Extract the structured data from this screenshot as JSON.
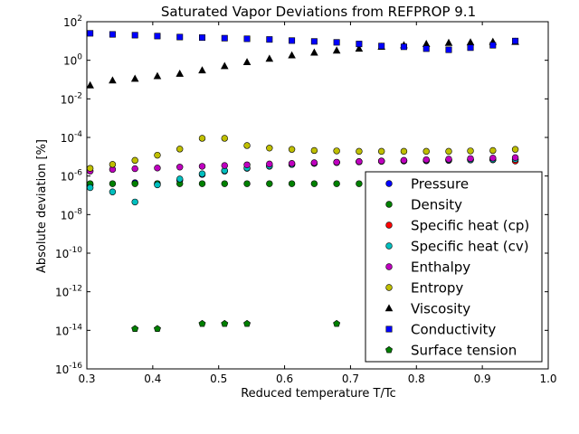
{
  "chart_data": {
    "type": "scatter",
    "title": "Saturated Vapor Deviations from REFPROP 9.1",
    "xlabel": "Reduced temperature T/Tc",
    "ylabel": "Absolute deviation [%]",
    "xlim": [
      0.3,
      1.0
    ],
    "ylim_log10": [
      -16,
      2
    ],
    "y_scale": "log",
    "x_ticks": [
      "0.3",
      "0.4",
      "0.5",
      "0.6",
      "0.7",
      "0.8",
      "0.9",
      "1.0"
    ],
    "y_ticks": [
      {
        "base": "10",
        "exp": "2"
      },
      {
        "base": "10",
        "exp": "0"
      },
      {
        "base": "10",
        "exp": "-2"
      },
      {
        "base": "10",
        "exp": "-4"
      },
      {
        "base": "10",
        "exp": "-6"
      },
      {
        "base": "10",
        "exp": "-8"
      },
      {
        "base": "10",
        "exp": "-10"
      },
      {
        "base": "10",
        "exp": "-12"
      },
      {
        "base": "10",
        "exp": "-14"
      },
      {
        "base": "10",
        "exp": "-16"
      }
    ],
    "grid": false,
    "legend_position": "lower-right",
    "series": [
      {
        "name": "Pressure",
        "marker": "circle",
        "color": "#0000ff",
        "x": [
          0.305,
          0.373,
          0.407,
          0.441,
          0.475,
          0.509,
          0.543,
          0.577,
          0.611,
          0.645,
          0.679,
          0.713,
          0.747,
          0.781,
          0.815,
          0.849,
          0.882,
          0.916,
          0.95
        ],
        "y": [
          3.5e-07,
          4.5e-07,
          4e-07,
          6e-07,
          1.2e-06,
          1.8e-06,
          2.5e-06,
          3.2e-06,
          4e-06,
          4.5e-06,
          5e-06,
          5.5e-06,
          5.8e-06,
          6e-06,
          6.2e-06,
          6.5e-06,
          6.8e-06,
          7e-06,
          7.2e-06
        ]
      },
      {
        "name": "Density",
        "marker": "circle",
        "color": "#008000",
        "x": [
          0.305,
          0.339,
          0.373,
          0.407,
          0.441,
          0.475,
          0.509,
          0.543,
          0.577,
          0.611,
          0.645,
          0.679,
          0.713
        ],
        "y": [
          4e-07,
          4e-07,
          4e-07,
          4e-07,
          4e-07,
          4e-07,
          4e-07,
          4e-07,
          4e-07,
          4e-07,
          4e-07,
          4e-07,
          4e-07
        ]
      },
      {
        "name": "Specific heat (cp)",
        "marker": "circle",
        "color": "#ff0000",
        "x": [
          0.713,
          0.747,
          0.781,
          0.815,
          0.849,
          0.882,
          0.916,
          0.95
        ],
        "y": [
          5.5e-06,
          6e-06,
          6.2e-06,
          6.5e-06,
          6.8e-06,
          7e-06,
          7e-06,
          6e-06
        ]
      },
      {
        "name": "Specific heat (cv)",
        "marker": "circle",
        "color": "#00bfbf",
        "x": [
          0.305,
          0.339,
          0.373,
          0.407,
          0.441,
          0.475,
          0.509,
          0.543,
          0.577,
          0.611,
          0.645,
          0.679,
          0.713,
          0.747,
          0.781,
          0.815,
          0.849,
          0.882,
          0.916,
          0.95
        ],
        "y": [
          2.5e-07,
          1.5e-07,
          4.5e-08,
          3.5e-07,
          7e-07,
          1.3e-06,
          1.9e-06,
          2.6e-06,
          3.3e-06,
          4e-06,
          4.6e-06,
          5.1e-06,
          5.5e-06,
          5.9e-06,
          6.2e-06,
          6.5e-06,
          6.8e-06,
          7e-06,
          7.2e-06,
          7.4e-06
        ]
      },
      {
        "name": "Enthalpy",
        "marker": "circle",
        "color": "#bf00bf",
        "x": [
          0.305,
          0.339,
          0.373,
          0.407,
          0.441,
          0.475,
          0.509,
          0.543,
          0.577,
          0.611,
          0.645,
          0.679,
          0.713,
          0.747,
          0.781,
          0.815,
          0.849,
          0.882,
          0.916,
          0.95
        ],
        "y": [
          1.8e-06,
          2.2e-06,
          2.4e-06,
          2.6e-06,
          2.9e-06,
          3.2e-06,
          3.5e-06,
          3.8e-06,
          4.2e-06,
          4.5e-06,
          4.9e-06,
          5.2e-06,
          5.6e-06,
          6e-06,
          6.5e-06,
          7e-06,
          7.5e-06,
          8e-06,
          8.5e-06,
          9e-06
        ]
      },
      {
        "name": "Entropy",
        "marker": "circle",
        "color": "#bfbf00",
        "x": [
          0.305,
          0.339,
          0.373,
          0.407,
          0.441,
          0.475,
          0.509,
          0.543,
          0.577,
          0.611,
          0.645,
          0.679,
          0.713,
          0.747,
          0.781,
          0.815,
          0.849,
          0.882,
          0.916,
          0.95
        ],
        "y": [
          2.5e-06,
          4e-06,
          6.5e-06,
          1.2e-05,
          2.5e-05,
          9e-05,
          9e-05,
          3.8e-05,
          2.8e-05,
          2.4e-05,
          2.1e-05,
          2e-05,
          1.9e-05,
          1.9e-05,
          1.9e-05,
          1.9e-05,
          1.9e-05,
          2e-05,
          2.1e-05,
          2.4e-05
        ]
      },
      {
        "name": "Viscosity",
        "marker": "triangle",
        "color": "#000000",
        "x": [
          0.305,
          0.339,
          0.373,
          0.407,
          0.441,
          0.475,
          0.509,
          0.543,
          0.577,
          0.611,
          0.645,
          0.679,
          0.713,
          0.747,
          0.781,
          0.815,
          0.849,
          0.882,
          0.916,
          0.95
        ],
        "y": [
          0.05,
          0.09,
          0.11,
          0.15,
          0.2,
          0.3,
          0.5,
          0.8,
          1.2,
          1.8,
          2.5,
          3.2,
          4,
          5,
          6,
          7,
          8,
          8.5,
          9,
          9
        ]
      },
      {
        "name": "Conductivity",
        "marker": "square",
        "color": "#0000ff",
        "x": [
          0.305,
          0.339,
          0.373,
          0.407,
          0.441,
          0.475,
          0.509,
          0.543,
          0.577,
          0.611,
          0.645,
          0.679,
          0.713,
          0.747,
          0.781,
          0.815,
          0.849,
          0.882,
          0.916,
          0.95
        ],
        "y": [
          25,
          22,
          20,
          18,
          16,
          15,
          14,
          13,
          12,
          10.5,
          9.5,
          8.5,
          7,
          5.5,
          5,
          4,
          3.5,
          4.5,
          6,
          10
        ]
      },
      {
        "name": "Surface tension",
        "marker": "pentagon",
        "color": "#007f00",
        "x": [
          0.373,
          0.407,
          0.475,
          0.509,
          0.543,
          0.679
        ],
        "y": [
          1.2e-14,
          1.2e-14,
          2.2e-14,
          2.2e-14,
          2.2e-14,
          2.2e-14
        ]
      }
    ]
  }
}
